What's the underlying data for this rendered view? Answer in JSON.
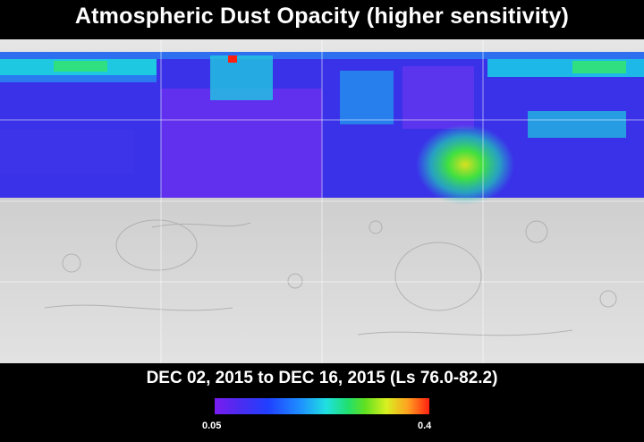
{
  "title": "Atmospheric Dust Opacity (higher sensitivity)",
  "subtitle": "DEC 02, 2015 to DEC 16, 2015 (Ls 76.0-82.2)",
  "colorbar": {
    "min_label": "0.05",
    "max_label": "0.4",
    "colors": [
      "#7a1cf0",
      "#2040ff",
      "#1e90ff",
      "#20e0e0",
      "#20e070",
      "#d8f020",
      "#ffa020",
      "#ff2010"
    ]
  },
  "map": {
    "data_coverage_fraction_of_height": 0.49,
    "basemap": "Mars shaded relief"
  }
}
